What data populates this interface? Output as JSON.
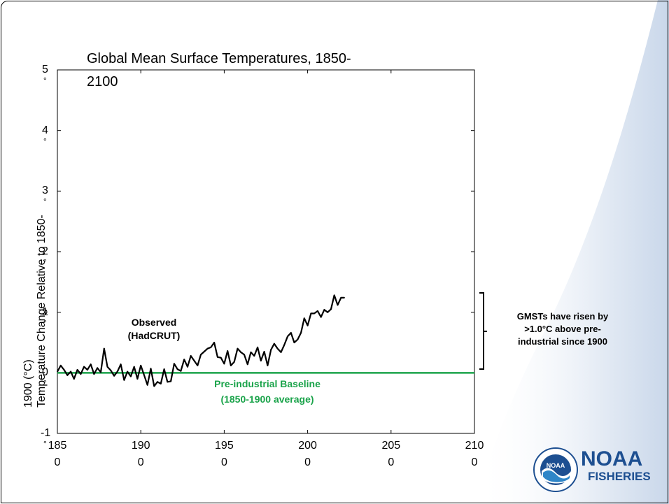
{
  "chart_data": {
    "type": "line",
    "title_line1": "Global Mean Surface Temperatures, 1850-",
    "title_line2": "2100",
    "ylabel_line1": "Temperature Change Relative to 1850-",
    "ylabel_line2": "1900 (°C)",
    "xlim": [
      1850,
      2100
    ],
    "ylim": [
      -1,
      5
    ],
    "x_ticks": [
      {
        "top": "185",
        "bottom": "0"
      },
      {
        "top": "190",
        "bottom": "0"
      },
      {
        "top": "195",
        "bottom": "0"
      },
      {
        "top": "200",
        "bottom": "0"
      },
      {
        "top": "205",
        "bottom": "0"
      },
      {
        "top": "210",
        "bottom": "0"
      }
    ],
    "y_ticks": [
      {
        "num": "5",
        "deg": "°"
      },
      {
        "num": "4",
        "deg": "°"
      },
      {
        "num": "3",
        "deg": "°"
      },
      {
        "num": "2",
        "deg": "°"
      },
      {
        "num": "1",
        "deg": "°"
      },
      {
        "num": "0",
        "deg": "°"
      },
      {
        "num": "-1",
        "deg": "°"
      }
    ],
    "series": [
      {
        "name": "Observed (HadCRUT)",
        "color": "#000000",
        "x": [
          1850,
          1852,
          1854,
          1856,
          1858,
          1860,
          1862,
          1864,
          1866,
          1868,
          1870,
          1872,
          1874,
          1876,
          1878,
          1880,
          1882,
          1884,
          1886,
          1888,
          1890,
          1892,
          1894,
          1896,
          1898,
          1900,
          1902,
          1904,
          1906,
          1908,
          1910,
          1912,
          1914,
          1916,
          1918,
          1920,
          1922,
          1924,
          1926,
          1928,
          1930,
          1932,
          1934,
          1936,
          1938,
          1940,
          1942,
          1944,
          1946,
          1948,
          1950,
          1952,
          1954,
          1956,
          1958,
          1960,
          1962,
          1964,
          1966,
          1968,
          1970,
          1972,
          1974,
          1976,
          1978,
          1980,
          1982,
          1984,
          1986,
          1988,
          1990,
          1992,
          1994,
          1996,
          1998,
          2000,
          2002,
          2004,
          2006,
          2008,
          2010,
          2012,
          2014,
          2016,
          2018,
          2020,
          2022
        ],
        "y": [
          0.02,
          0.12,
          0.05,
          -0.04,
          0.02,
          -0.1,
          0.05,
          -0.02,
          0.1,
          0.05,
          0.14,
          -0.02,
          0.08,
          0.01,
          0.4,
          0.1,
          0.04,
          -0.05,
          0.02,
          0.14,
          -0.12,
          0.02,
          -0.06,
          0.1,
          -0.1,
          0.12,
          -0.04,
          -0.2,
          0.07,
          -0.22,
          -0.15,
          -0.18,
          0.06,
          -0.15,
          -0.14,
          0.15,
          0.06,
          0.03,
          0.22,
          0.1,
          0.28,
          0.2,
          0.12,
          0.3,
          0.35,
          0.4,
          0.42,
          0.5,
          0.26,
          0.25,
          0.15,
          0.36,
          0.12,
          0.18,
          0.4,
          0.34,
          0.3,
          0.14,
          0.34,
          0.28,
          0.42,
          0.2,
          0.35,
          0.12,
          0.38,
          0.48,
          0.4,
          0.34,
          0.46,
          0.6,
          0.66,
          0.5,
          0.55,
          0.66,
          0.9,
          0.78,
          0.98,
          0.98,
          1.02,
          0.92,
          1.04,
          1.0,
          1.05,
          1.28,
          1.12,
          1.24,
          1.24
        ]
      }
    ],
    "baseline": {
      "y": 0,
      "color": "#1aa34a",
      "label_line1": "Pre-industrial Baseline",
      "label_line2": "(1850-1900 average)"
    },
    "annotations": {
      "observed_line1": "Observed",
      "observed_line2": "(HadCRUT)"
    },
    "side_note": [
      "GMSTs have risen by",
      ">1.0°C above pre-",
      "industrial since 1900"
    ]
  },
  "logo": {
    "word": "NOAA",
    "sub": "FISHERIES",
    "seal_text": "NOAA",
    "color": "#1d4f91"
  }
}
